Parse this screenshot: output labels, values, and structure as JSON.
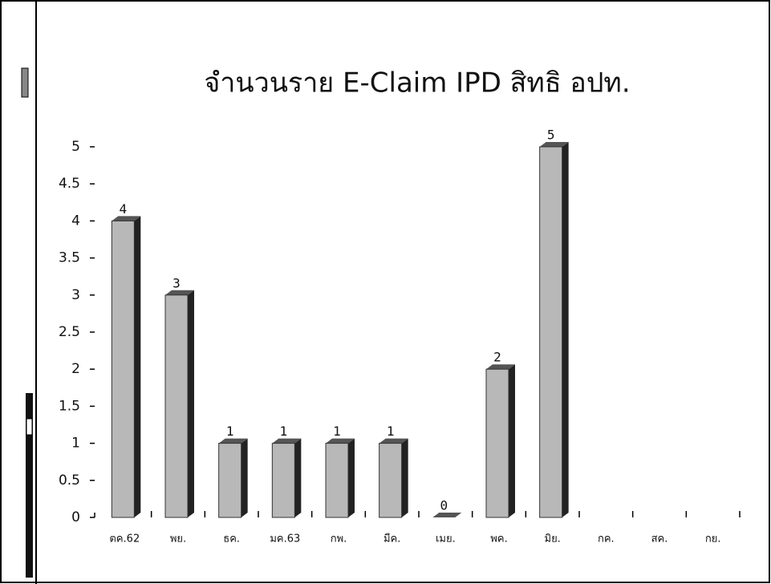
{
  "chart_data": {
    "type": "bar",
    "title": "จำนวนราย E-Claim IPD สิทธิ อปท.",
    "categories": [
      "ตค.62",
      "พย.",
      "ธค.",
      "มค.63",
      "กพ.",
      "มีค.",
      "เมย.",
      "พค.",
      "มิย.",
      "กค.",
      "สค.",
      "กย."
    ],
    "values": [
      4,
      3,
      1,
      1,
      1,
      1,
      0,
      2,
      5,
      null,
      null,
      null
    ],
    "color": "#b8b8b8",
    "ylim": [
      0,
      5
    ],
    "yticks": [
      0,
      0.5,
      1,
      1.5,
      2,
      2.5,
      3,
      3.5,
      4,
      4.5,
      5
    ]
  }
}
